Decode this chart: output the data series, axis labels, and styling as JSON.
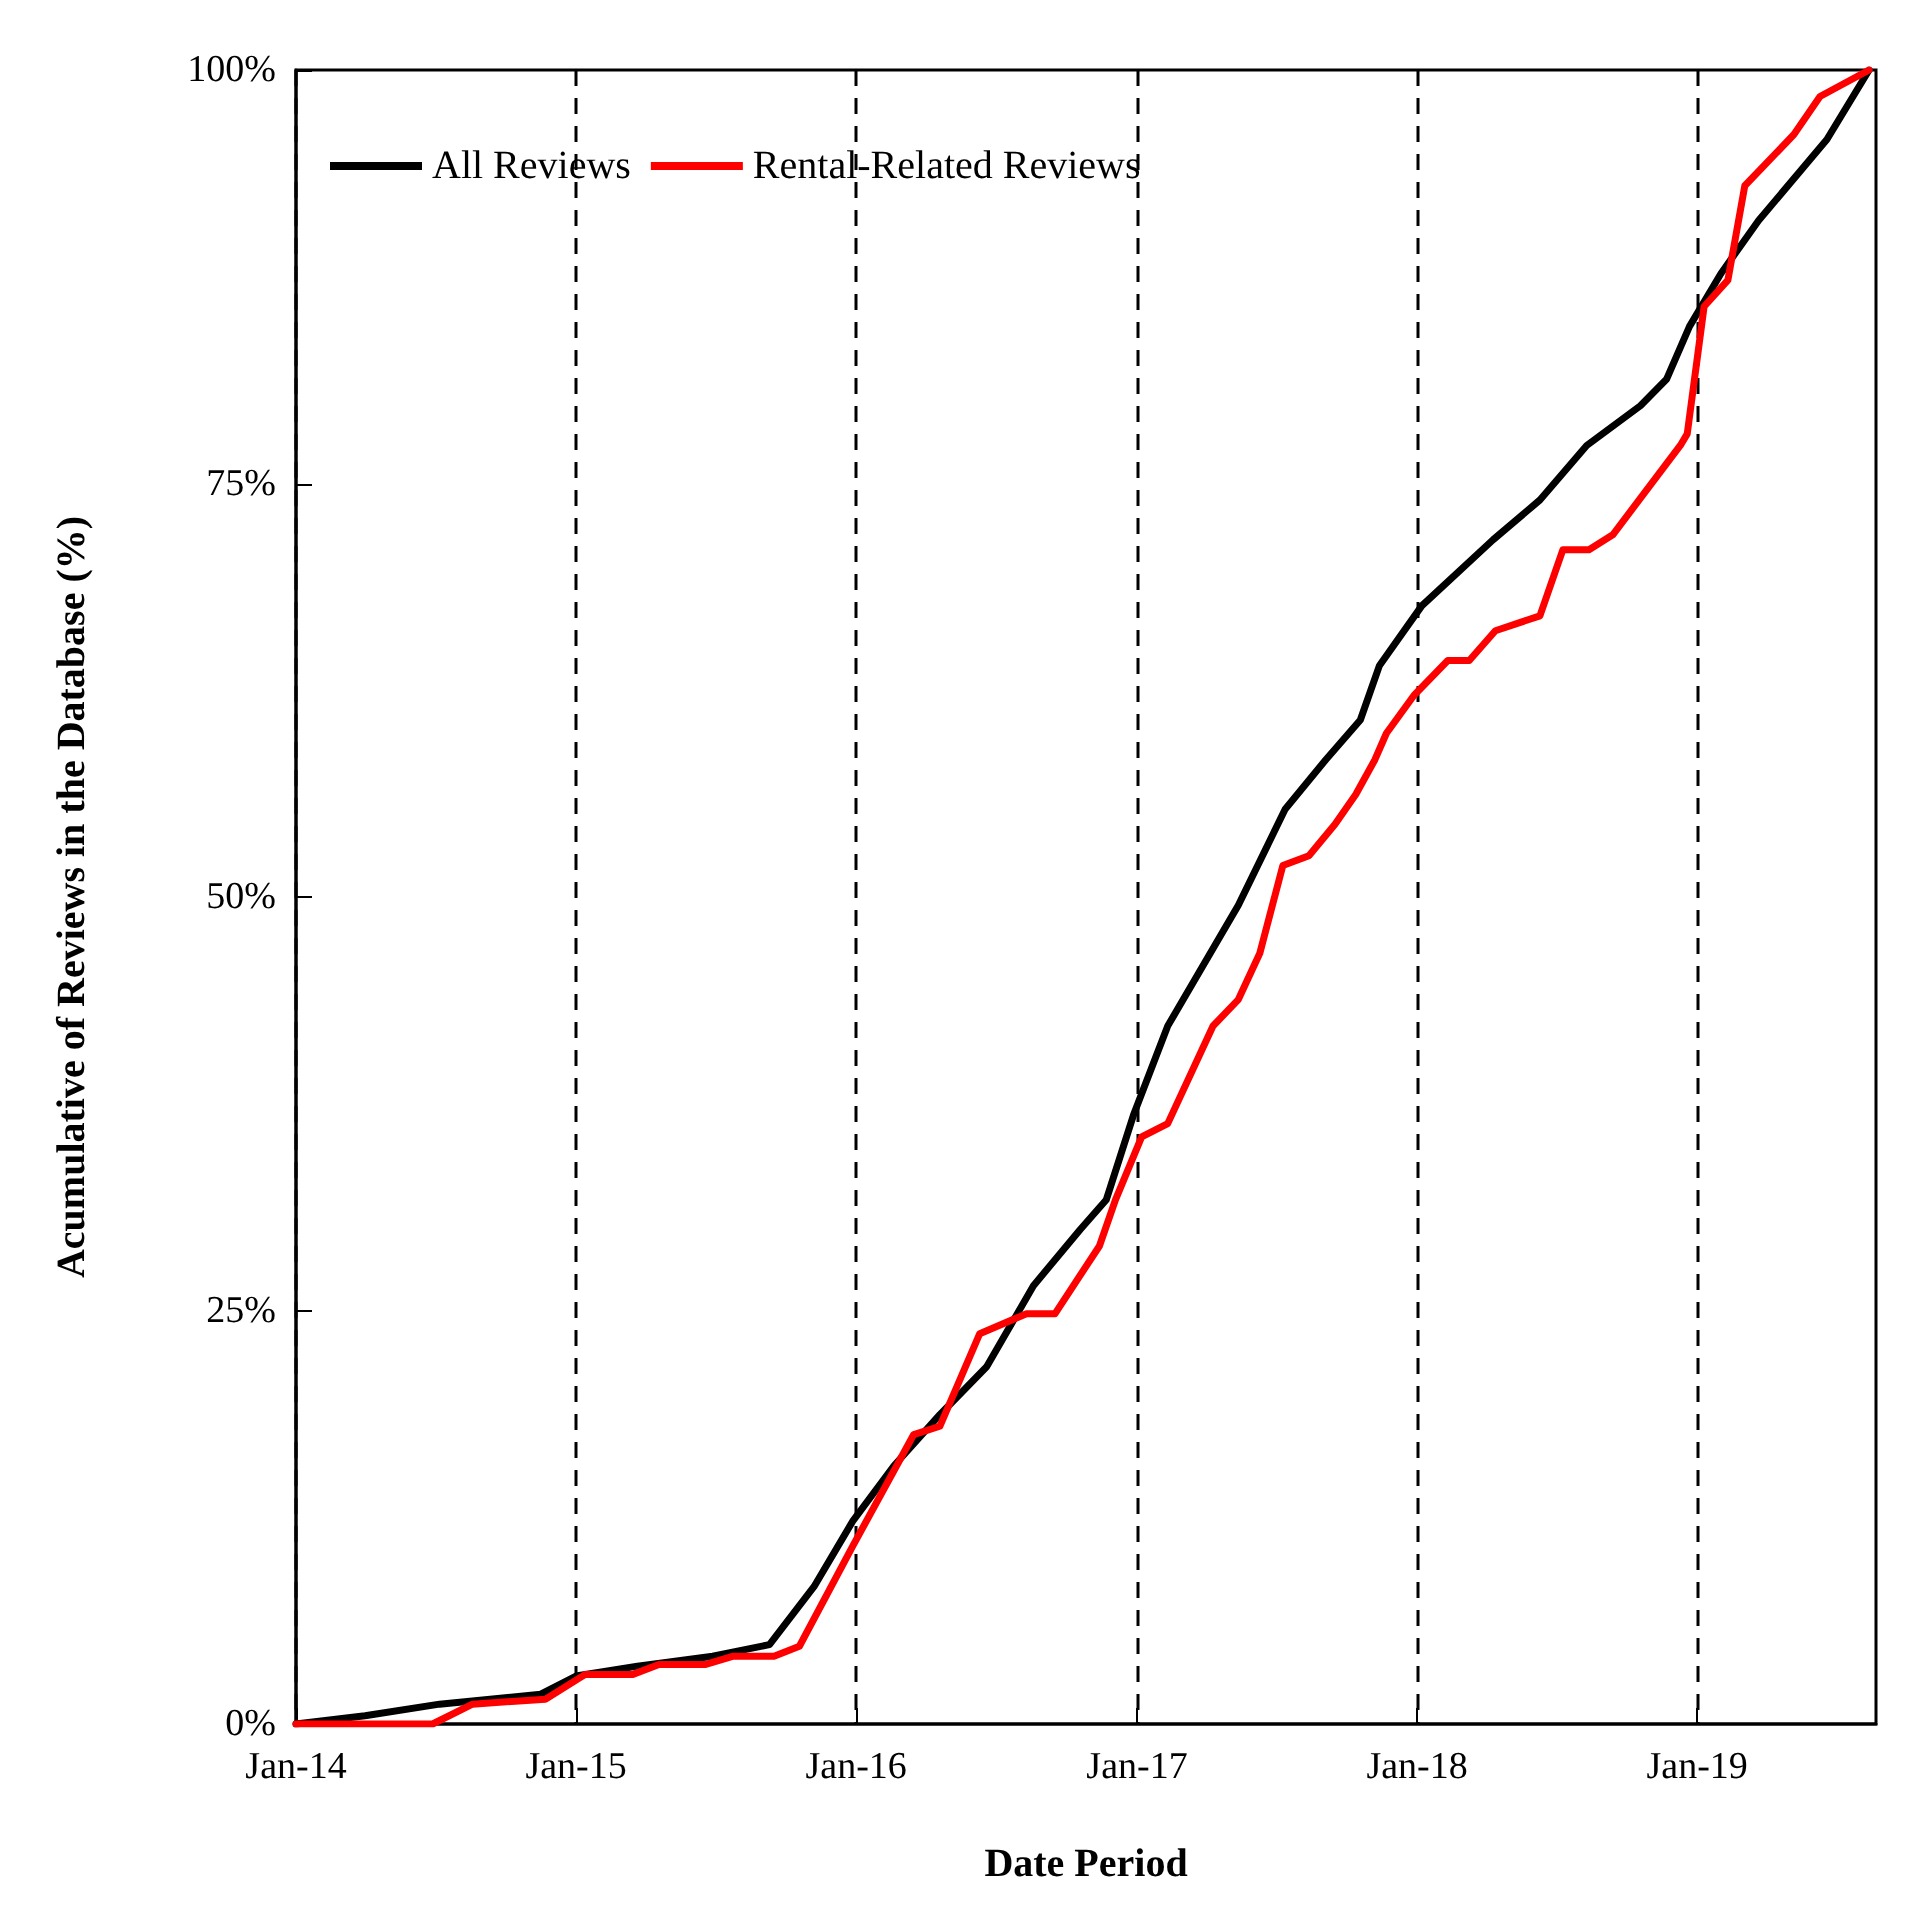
{
  "chart_data": {
    "type": "line",
    "xlabel": "Date Period",
    "ylabel": "Acumulative of Reviews in the Database (%)",
    "xlim": [
      "2014-01-01",
      "2019-08-22"
    ],
    "xticks": [
      {
        "value": "2014-01-01",
        "label": "Jan-14"
      },
      {
        "value": "2015-01-01",
        "label": "Jan-15"
      },
      {
        "value": "2016-01-01",
        "label": "Jan-16"
      },
      {
        "value": "2017-01-01",
        "label": "Jan-17"
      },
      {
        "value": "2018-01-01",
        "label": "Jan-18"
      },
      {
        "value": "2019-01-01",
        "label": "Jan-19"
      }
    ],
    "ylim": [
      0,
      100
    ],
    "yticks": [
      {
        "value": 0,
        "label": "0%"
      },
      {
        "value": 25,
        "label": "25%"
      },
      {
        "value": 50,
        "label": "50%"
      },
      {
        "value": 75,
        "label": "75%"
      },
      {
        "value": 100,
        "label": "100%"
      }
    ],
    "grid": "x",
    "legend": "top left",
    "marker": "none",
    "line_style": "solid",
    "series": [
      {
        "name": "All Reviews",
        "color": "#000000",
        "x": [
          "2014-01-01",
          "2014-04-01",
          "2014-07-07",
          "2014-11-16",
          "2015-01-01",
          "2015-03-22",
          "2015-06-28",
          "2015-09-10",
          "2015-11-07",
          "2015-12-28",
          "2016-02-19",
          "2016-04-19",
          "2016-06-19",
          "2016-08-19",
          "2016-10-19",
          "2016-11-22",
          "2016-12-28",
          "2017-02-10",
          "2017-05-13",
          "2017-07-13",
          "2017-09-04",
          "2017-10-19",
          "2017-11-13",
          "2018-01-07",
          "2018-04-10",
          "2018-06-10",
          "2018-08-10",
          "2018-10-19",
          "2018-11-22",
          "2018-12-22",
          "2019-02-01",
          "2019-03-22",
          "2019-06-19",
          "2019-08-13"
        ],
        "values": [
          0,
          0.5,
          1.2,
          1.8,
          2.9,
          3.5,
          4.1,
          4.8,
          8.3,
          12.3,
          15.6,
          18.7,
          21.6,
          26.5,
          29.9,
          31.7,
          36.9,
          42.2,
          49.5,
          55.3,
          58.3,
          60.7,
          64,
          67.6,
          71.6,
          74,
          77.3,
          79.7,
          81.3,
          84.5,
          87.7,
          90.9,
          95.8,
          100
        ]
      },
      {
        "name": "Rental-Related Reviews",
        "color": "#ff0000",
        "x": [
          "2014-01-01",
          "2014-06-28",
          "2014-08-19",
          "2014-11-22",
          "2015-01-13",
          "2015-03-16",
          "2015-04-19",
          "2015-06-19",
          "2015-07-25",
          "2015-09-16",
          "2015-10-19",
          "2015-12-28",
          "2016-03-16",
          "2016-04-19",
          "2016-06-10",
          "2016-08-10",
          "2016-09-16",
          "2016-11-13",
          "2016-12-04",
          "2017-01-07",
          "2017-02-10",
          "2017-04-10",
          "2017-05-13",
          "2017-06-10",
          "2017-07-10",
          "2017-08-13",
          "2017-09-16",
          "2017-10-13",
          "2017-11-07",
          "2017-11-22",
          "2017-12-28",
          "2018-02-10",
          "2018-03-10",
          "2018-04-13",
          "2018-06-10",
          "2018-07-10",
          "2018-08-13",
          "2018-09-13",
          "2018-12-10",
          "2018-12-19",
          "2019-01-10",
          "2019-02-10",
          "2019-03-04",
          "2019-05-07",
          "2019-06-10",
          "2019-08-13"
        ],
        "values": [
          0,
          0,
          1.2,
          1.5,
          3,
          3,
          3.6,
          3.6,
          4.1,
          4.1,
          4.7,
          10.8,
          17.5,
          18,
          23.6,
          24.8,
          24.8,
          28.9,
          31.7,
          35.5,
          36.3,
          42.2,
          43.8,
          46.6,
          51.9,
          52.5,
          54.4,
          56.2,
          58.3,
          59.9,
          62.2,
          64.3,
          64.3,
          66.1,
          67,
          71,
          71,
          71.9,
          77.3,
          78,
          85.7,
          87.3,
          93,
          96.1,
          98.4,
          100
        ]
      }
    ]
  }
}
